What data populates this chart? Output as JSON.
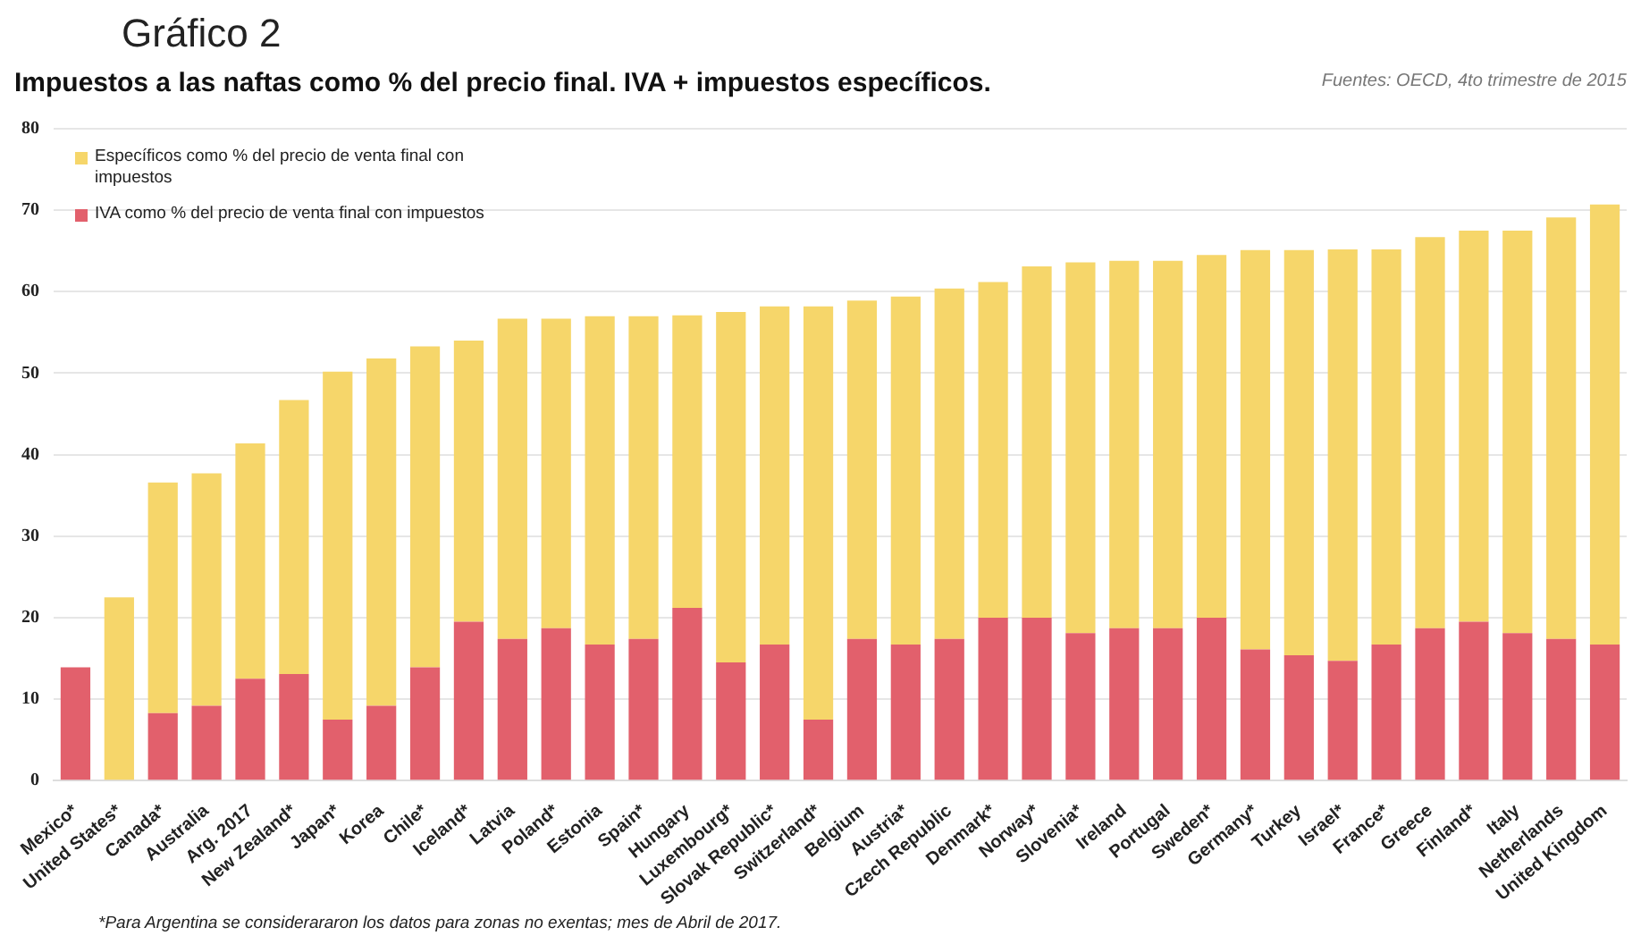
{
  "chart_data": {
    "type": "bar",
    "title": "Gráfico 2",
    "subtitle": "Impuestos a las naftas como % del precio final. IVA + impuestos específicos.",
    "annotations": [
      "Fuentes: OECD, 4to trimestre de 2015",
      "*Para Argentina se considerararon los datos para zonas no exentas; mes de Abril de 2017."
    ],
    "categories": [
      "Mexico*",
      "United States*",
      "Canada*",
      "Australia",
      "Arg. 2017",
      "New Zealand*",
      "Japan*",
      "Korea",
      "Chile*",
      "Iceland*",
      "Latvia",
      "Poland*",
      "Estonia",
      "Spain*",
      "Hungary",
      "Luxembourg*",
      "Slovak Republic*",
      "Switzerland*",
      "Belgium",
      "Austria*",
      "Czech Republic",
      "Denmark*",
      "Norway*",
      "Slovenia*",
      "Ireland",
      "Portugal",
      "Sweden*",
      "Germany*",
      "Turkey",
      "Israel*",
      "France*",
      "Greece",
      "Finland*",
      "Italy",
      "Netherlands",
      "United Kingdom"
    ],
    "stacked": true,
    "series": [
      {
        "name": "IVA como % del precio de venta final con impuestos",
        "color": "#e2606c",
        "values": [
          13.9,
          0,
          8.3,
          9.2,
          12.5,
          13.1,
          7.5,
          9.2,
          13.9,
          19.5,
          17.4,
          18.7,
          16.7,
          17.4,
          21.2,
          14.5,
          16.7,
          7.5,
          17.4,
          16.7,
          17.4,
          20.0,
          20.0,
          18.1,
          18.7,
          18.7,
          20.0,
          16.1,
          15.4,
          14.7,
          16.7,
          18.7,
          19.5,
          18.1,
          17.4,
          16.7
        ]
      },
      {
        "name": "Específicos como % del precio de venta final con impuestos",
        "color": "#f6d66a",
        "values": [
          0,
          22.5,
          28.3,
          28.5,
          28.9,
          33.6,
          42.7,
          42.6,
          39.4,
          34.5,
          39.3,
          38.0,
          40.3,
          39.6,
          35.9,
          43.0,
          41.5,
          50.7,
          41.5,
          42.7,
          43.0,
          41.2,
          43.1,
          45.5,
          45.1,
          45.1,
          44.5,
          49.0,
          49.7,
          50.5,
          48.5,
          48.0,
          48.0,
          49.4,
          51.7,
          54.0
        ]
      }
    ],
    "ylim": [
      0,
      80
    ],
    "yticks": [
      0,
      10,
      20,
      30,
      40,
      50,
      60,
      70,
      80
    ],
    "grid": "y",
    "legend": "top left"
  }
}
